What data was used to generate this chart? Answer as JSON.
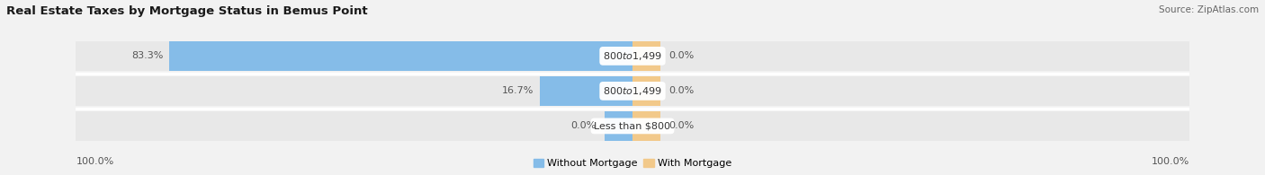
{
  "title": "Real Estate Taxes by Mortgage Status in Bemus Point",
  "source": "Source: ZipAtlas.com",
  "rows": [
    {
      "label": "Less than $800",
      "without": 0.0,
      "with": 0.0
    },
    {
      "label": "$800 to $1,499",
      "without": 16.7,
      "with": 0.0
    },
    {
      "label": "$800 to $1,499",
      "without": 83.3,
      "with": 0.0
    }
  ],
  "color_without": "#85BCE8",
  "color_with": "#F2C98A",
  "bar_bg_color": "#E8E8E8",
  "row_sep_color": "#FFFFFF",
  "background_color": "#F2F2F2",
  "max_val": 100.0,
  "legend_without": "Without Mortgage",
  "legend_with": "With Mortgage",
  "left_label": "100.0%",
  "right_label": "100.0%",
  "title_fontsize": 9.5,
  "source_fontsize": 7.5,
  "label_fontsize": 8.0,
  "pct_fontsize": 8.0,
  "legend_fontsize": 8.0
}
